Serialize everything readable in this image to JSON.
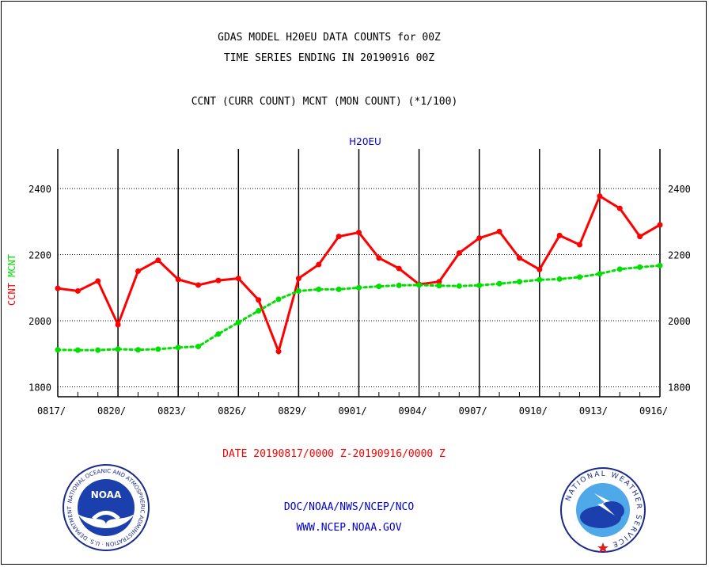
{
  "header": {
    "title_line1": "GDAS MODEL H20EU DATA COUNTS for 00Z",
    "title_line2": "TIME SERIES ENDING IN 20190916 00Z",
    "subtitle": "CCNT (CURR COUNT) MCNT (MON COUNT) (*1/100)"
  },
  "footer": {
    "date_range": "DATE 20190817/0000 Z-20190916/0000 Z",
    "agency": "DOC/NOAA/NWS/NCEP/NCO",
    "website": "WWW.NCEP.NOAA.GOV"
  },
  "logos": {
    "noaa_text": "NOAA",
    "nws_ring_text": "NATIONAL WEATHER SERVICE"
  },
  "colors": {
    "ccnt": "#ff0000",
    "mcnt": "#00e000",
    "title_blue": "#0000cc",
    "date_red": "#ff0000"
  },
  "chart_data": {
    "type": "line",
    "title": "H20EU",
    "ylabel_series": [
      "CCNT",
      "MCNT"
    ],
    "xlim": [
      0,
      30
    ],
    "ylim": [
      1770,
      2520
    ],
    "y_ticks": [
      1800,
      2000,
      2200,
      2400
    ],
    "x_tick_labels": [
      {
        "x": 0,
        "label": "0817/"
      },
      {
        "x": 3,
        "label": "0820/"
      },
      {
        "x": 6,
        "label": "0823/"
      },
      {
        "x": 9,
        "label": "0826/"
      },
      {
        "x": 12,
        "label": "0829/"
      },
      {
        "x": 15,
        "label": "0901/"
      },
      {
        "x": 18,
        "label": "0904/"
      },
      {
        "x": 21,
        "label": "0907/"
      },
      {
        "x": 24,
        "label": "0910/"
      },
      {
        "x": 27,
        "label": "0913/"
      },
      {
        "x": 30,
        "label": "0916/"
      }
    ],
    "grid": true,
    "series": [
      {
        "name": "CCNT",
        "values": [
          2098,
          2090,
          2120,
          1988,
          2150,
          2183,
          2125,
          2108,
          2122,
          2128,
          2063,
          1907,
          2128,
          2170,
          2255,
          2267,
          2190,
          2158,
          2110,
          2118,
          2205,
          2250,
          2270,
          2190,
          2155,
          2258,
          2230,
          2377,
          2340,
          2255,
          2290
        ]
      },
      {
        "name": "MCNT",
        "values": [
          1912,
          1911,
          1911,
          1914,
          1912,
          1914,
          1919,
          1922,
          1960,
          1995,
          2030,
          2065,
          2090,
          2095,
          2095,
          2100,
          2104,
          2107,
          2108,
          2106,
          2105,
          2107,
          2112,
          2118,
          2124,
          2126,
          2132,
          2142,
          2156,
          2162,
          2167
        ]
      }
    ]
  }
}
